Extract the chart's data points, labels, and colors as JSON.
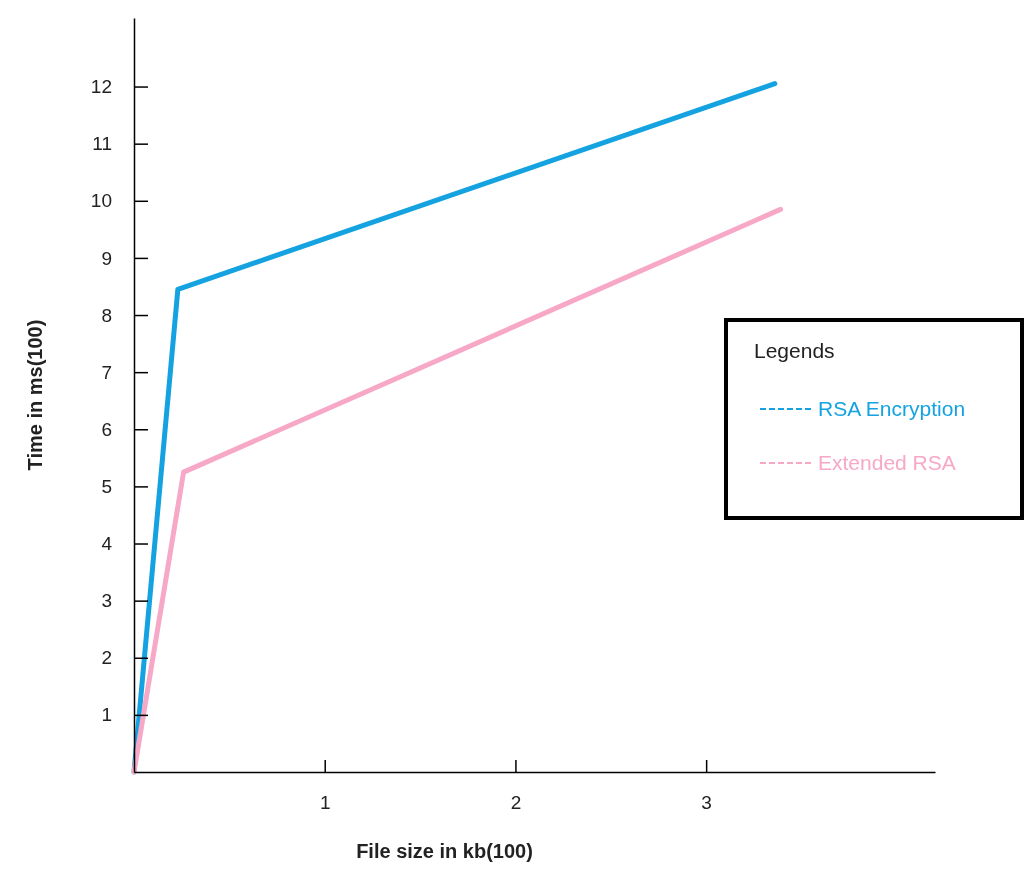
{
  "chart_data": {
    "type": "line",
    "xlabel": "File size in kb(100)",
    "ylabel": "Time in ms(100)",
    "legend_title": "Legends",
    "series": [
      {
        "name": "RSA Encryption",
        "color": "#14a3e0",
        "x": [
          0,
          0.23,
          3.36
        ],
        "values": [
          0,
          8.45,
          12.05
        ]
      },
      {
        "name": "Extended RSA",
        "color": "#f7a8c6",
        "x": [
          0,
          0.26,
          3.39
        ],
        "values": [
          0,
          5.25,
          9.85
        ]
      }
    ],
    "xlim": [
      0,
      4.2
    ],
    "ylim": [
      0,
      13.2
    ],
    "xticks": [
      1,
      2,
      3
    ],
    "yticks": [
      1,
      2,
      3,
      4,
      5,
      6,
      7,
      8,
      9,
      10,
      11,
      12
    ],
    "grid": false,
    "legend": "right",
    "marker": "none",
    "line_style": "solid"
  }
}
